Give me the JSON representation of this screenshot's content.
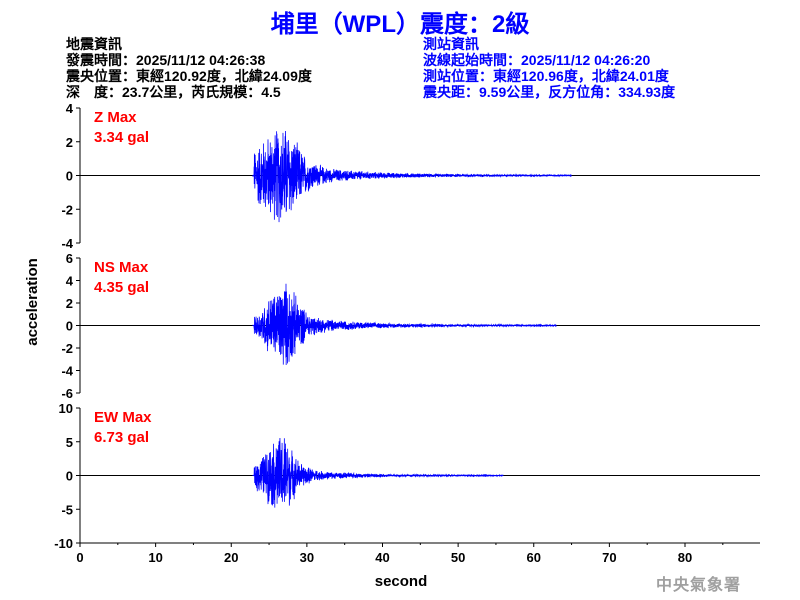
{
  "title": "埔里（WPL）震度：2級",
  "event_info": {
    "heading": "地震資訊",
    "origin_time": "發震時間：2025/11/12 04:26:38",
    "epicenter": "震央位置：東經120.92度，北緯24.09度",
    "depth_magnitude": "深　度：23.7公里，芮氏規模：4.5"
  },
  "station_info": {
    "heading": "測站資訊",
    "wave_start": "波線起始時間：2025/11/12 04:26:20",
    "station_location": "測站位置：東經120.96度，北緯24.01度",
    "distance_azimuth": "震央距：9.59公里，反方位角：334.93度"
  },
  "watermark": "中央氣象署",
  "colors": {
    "title": "#0000ff",
    "station_info": "#0000ff",
    "trace": "#0000ff",
    "max_label": "#ff0000",
    "watermark": "#a0a0a0"
  },
  "chart_data": {
    "type": "line",
    "xlabel": "second",
    "ylabel": "acceleration",
    "xlim": [
      0,
      90
    ],
    "xticks": [
      "0",
      "10",
      "20",
      "30",
      "40",
      "50",
      "60",
      "70",
      "80"
    ],
    "grid": false,
    "panels": [
      {
        "component": "Z",
        "max_title": "Z Max",
        "max_value": "3.34 gal",
        "ylim": [
          -4,
          4
        ],
        "yticks": [
          "4",
          "2",
          "0",
          "-2",
          "-4"
        ],
        "peak_envelope": {
          "t_start": 23,
          "amplitudes": [
            1.6,
            2.2,
            2.6,
            3.0,
            3.34,
            2.6,
            1.8,
            1.1,
            0.8,
            0.6,
            0.45,
            0.4,
            0.35,
            0.3,
            0.3,
            0.25,
            0.22,
            0.2,
            0.18,
            0.16,
            0.15,
            0.14,
            0.13,
            0.12,
            0.11,
            0.1,
            0.1,
            0.09,
            0.09,
            0.08,
            0.08,
            0.07,
            0.07,
            0.06,
            0.06,
            0.05,
            0.05,
            0.05,
            0.04,
            0.04,
            0.04,
            0.03
          ]
        }
      },
      {
        "component": "NS",
        "max_title": "NS Max",
        "max_value": "4.35 gal",
        "ylim": [
          -6,
          6
        ],
        "yticks": [
          "6",
          "4",
          "2",
          "0",
          "-2",
          "-4",
          "-6"
        ],
        "peak_envelope": {
          "t_start": 23,
          "amplitudes": [
            0.8,
            1.5,
            2.8,
            3.2,
            4.35,
            3.6,
            2.2,
            1.3,
            0.9,
            0.7,
            0.6,
            0.5,
            0.45,
            0.4,
            0.35,
            0.3,
            0.28,
            0.25,
            0.22,
            0.2,
            0.2,
            0.18,
            0.17,
            0.16,
            0.15,
            0.14,
            0.13,
            0.12,
            0.12,
            0.11,
            0.1,
            0.1,
            0.09,
            0.09,
            0.08,
            0.08,
            0.07,
            0.07,
            0.06,
            0.06
          ]
        }
      },
      {
        "component": "EW",
        "max_title": "EW Max",
        "max_value": "6.73 gal",
        "ylim": [
          -10,
          10
        ],
        "yticks": [
          "10",
          "5",
          "0",
          "-5",
          "-10"
        ],
        "peak_envelope": {
          "t_start": 23,
          "amplitudes": [
            2.2,
            3.0,
            4.5,
            6.0,
            6.73,
            4.2,
            2.2,
            1.4,
            1.0,
            0.7,
            0.6,
            0.5,
            0.45,
            0.4,
            0.35,
            0.3,
            0.28,
            0.25,
            0.22,
            0.2,
            0.18,
            0.16,
            0.15,
            0.14,
            0.13,
            0.12,
            0.11,
            0.1,
            0.1,
            0.09,
            0.08,
            0.08,
            0.07
          ]
        }
      }
    ]
  }
}
